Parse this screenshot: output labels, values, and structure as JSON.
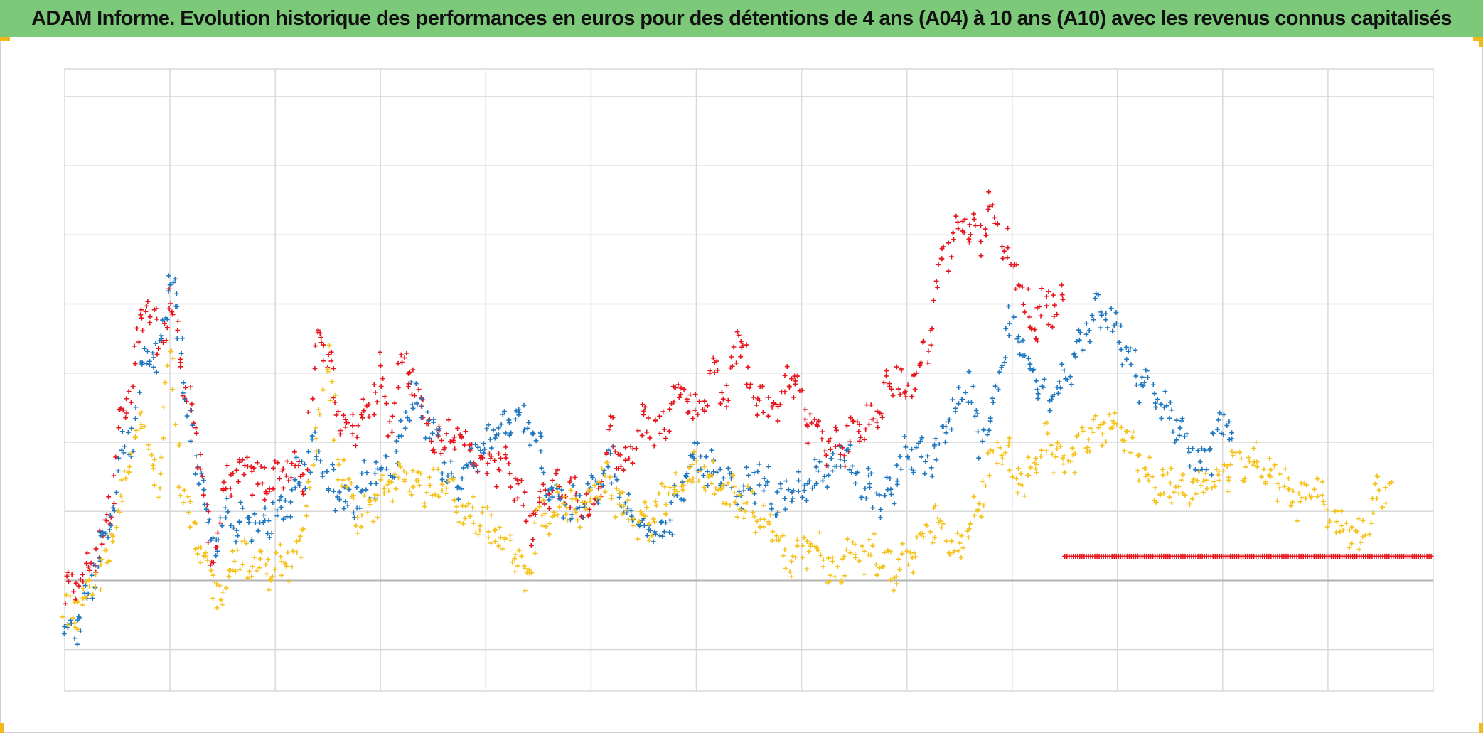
{
  "title": "ADAM Informe. Evolution historique des performances en euros pour des détentions de 4 ans (A04) à 10 ans (A10) avec les revenus connus capitalisés",
  "colors": {
    "title_bg": "#7dc97a",
    "A04": "#e8141b",
    "A07": "#1f77c0",
    "A10": "#f5c21b",
    "grid": "#d9d9d9",
    "corner_accent": "#f3b71a"
  },
  "chart_data": {
    "type": "scatter",
    "title": "ADAM Informe. Evolution historique des performances en euros pour des détentions de 4 ans (A04) à 10 ans (A10) avec les revenus connus capitalisés",
    "marker": "+",
    "grid": true,
    "legend": "none",
    "xlim": [
      0,
      13
    ],
    "ylim": [
      -1.6,
      7.4
    ],
    "x_grid_step": 1,
    "y_gridlines": [
      -1,
      0,
      1,
      2,
      3,
      4,
      5,
      6,
      7
    ],
    "y_baseline": 0,
    "series": [
      {
        "key": "A04",
        "color": "#e8141b",
        "points": [
          [
            0,
            -0.25
          ],
          [
            0.15,
            0
          ],
          [
            0.3,
            0.4
          ],
          [
            0.45,
            1.2
          ],
          [
            0.5,
            2.2
          ],
          [
            0.6,
            2.5
          ],
          [
            0.7,
            3.5
          ],
          [
            0.8,
            4
          ],
          [
            0.9,
            3.3
          ],
          [
            1,
            4.1
          ],
          [
            1.1,
            3.2
          ],
          [
            1.2,
            2.5
          ],
          [
            1.3,
            1.6
          ],
          [
            1.4,
            0.2
          ],
          [
            1.5,
            1.3
          ],
          [
            1.7,
            1.6
          ],
          [
            1.9,
            1.4
          ],
          [
            2.1,
            1.6
          ],
          [
            2.3,
            1.5
          ],
          [
            2.4,
            3.8
          ],
          [
            2.5,
            3.2
          ],
          [
            2.6,
            2.4
          ],
          [
            2.8,
            2.2
          ],
          [
            3,
            3
          ],
          [
            3.1,
            2.1
          ],
          [
            3.2,
            3.2
          ],
          [
            3.4,
            2.6
          ],
          [
            3.5,
            1.9
          ],
          [
            3.6,
            2.2
          ],
          [
            3.8,
            2
          ],
          [
            4,
            1.6
          ],
          [
            4.2,
            1.8
          ],
          [
            4.4,
            0.8
          ],
          [
            4.6,
            1.3
          ],
          [
            4.8,
            1.3
          ],
          [
            5,
            1
          ],
          [
            5.2,
            2.2
          ],
          [
            5.3,
            1.6
          ],
          [
            5.5,
            2.3
          ],
          [
            5.7,
            2.2
          ],
          [
            5.8,
            2.9
          ],
          [
            5.9,
            2.7
          ],
          [
            6,
            2.4
          ],
          [
            6.2,
            3.1
          ],
          [
            6.3,
            2.6
          ],
          [
            6.4,
            3.7
          ],
          [
            6.5,
            2.9
          ],
          [
            6.7,
            2.4
          ],
          [
            6.9,
            3
          ],
          [
            7,
            2.5
          ],
          [
            7.2,
            2
          ],
          [
            7.4,
            1.9
          ],
          [
            7.5,
            2.2
          ],
          [
            7.7,
            2.3
          ],
          [
            7.9,
            3
          ],
          [
            8,
            2.7
          ],
          [
            8.2,
            3.4
          ],
          [
            8.3,
            4.5
          ],
          [
            8.5,
            5.2
          ],
          [
            8.7,
            5
          ],
          [
            8.8,
            5.4
          ],
          [
            9,
            4.6
          ],
          [
            9.2,
            3.6
          ],
          [
            9.3,
            4
          ],
          [
            9.5,
            4
          ]
        ]
      },
      {
        "key": "A07",
        "color": "#1f77c0",
        "points": [
          [
            0,
            -0.7
          ],
          [
            0.15,
            -0.6
          ],
          [
            0.3,
            0.2
          ],
          [
            0.45,
            1
          ],
          [
            0.55,
            1.9
          ],
          [
            0.65,
            2.2
          ],
          [
            0.75,
            3.5
          ],
          [
            0.85,
            3
          ],
          [
            0.95,
            3.8
          ],
          [
            1,
            4.5
          ],
          [
            1.1,
            3.5
          ],
          [
            1.2,
            2
          ],
          [
            1.3,
            1.4
          ],
          [
            1.4,
            0.4
          ],
          [
            1.5,
            0.9
          ],
          [
            1.7,
            0.9
          ],
          [
            1.9,
            0.8
          ],
          [
            2.1,
            1.1
          ],
          [
            2.2,
            1.5
          ],
          [
            2.4,
            1.9
          ],
          [
            2.5,
            1.4
          ],
          [
            2.7,
            1.1
          ],
          [
            2.9,
            1.5
          ],
          [
            3.1,
            1.6
          ],
          [
            3.3,
            2.7
          ],
          [
            3.5,
            2.2
          ],
          [
            3.7,
            1.3
          ],
          [
            3.9,
            1.8
          ],
          [
            4.1,
            2.1
          ],
          [
            4.3,
            2.4
          ],
          [
            4.5,
            1.9
          ],
          [
            4.6,
            1.4
          ],
          [
            4.8,
            1
          ],
          [
            5,
            1.2
          ],
          [
            5.2,
            1.7
          ],
          [
            5.3,
            1
          ],
          [
            5.5,
            0.9
          ],
          [
            5.7,
            0.7
          ],
          [
            5.9,
            1.5
          ],
          [
            6,
            1.8
          ],
          [
            6.2,
            1.5
          ],
          [
            6.4,
            1.2
          ],
          [
            6.6,
            1.5
          ],
          [
            6.8,
            1.1
          ],
          [
            7,
            1.3
          ],
          [
            7.2,
            1.5
          ],
          [
            7.4,
            1.9
          ],
          [
            7.6,
            1.4
          ],
          [
            7.8,
            1.1
          ],
          [
            8,
            1.9
          ],
          [
            8.2,
            1.7
          ],
          [
            8.4,
            2.2
          ],
          [
            8.6,
            2.8
          ],
          [
            8.7,
            1.9
          ],
          [
            9,
            3.8
          ],
          [
            9.2,
            3
          ],
          [
            9.4,
            2.6
          ],
          [
            9.6,
            3.3
          ],
          [
            9.8,
            3.9
          ],
          [
            10,
            3.6
          ],
          [
            10.2,
            2.9
          ],
          [
            10.4,
            2.6
          ],
          [
            10.6,
            2.2
          ],
          [
            10.8,
            1.6
          ],
          [
            11,
            2.3
          ],
          [
            11.1,
            2.1
          ]
        ]
      },
      {
        "key": "A10",
        "color": "#f5c21b",
        "points": [
          [
            0,
            -0.5
          ],
          [
            0.2,
            -0.4
          ],
          [
            0.35,
            0.2
          ],
          [
            0.5,
            0.8
          ],
          [
            0.6,
            1.6
          ],
          [
            0.75,
            2.5
          ],
          [
            0.9,
            1.2
          ],
          [
            1,
            3.5
          ],
          [
            1.1,
            1.5
          ],
          [
            1.2,
            0.7
          ],
          [
            1.4,
            0
          ],
          [
            1.5,
            -0.2
          ],
          [
            1.6,
            0.4
          ],
          [
            1.8,
            0.2
          ],
          [
            2,
            0.2
          ],
          [
            2.2,
            0.3
          ],
          [
            2.3,
            0.8
          ],
          [
            2.5,
            3.4
          ],
          [
            2.6,
            1.7
          ],
          [
            2.8,
            0.9
          ],
          [
            3,
            1.2
          ],
          [
            3.2,
            1.5
          ],
          [
            3.4,
            1.4
          ],
          [
            3.6,
            1.3
          ],
          [
            3.8,
            1
          ],
          [
            4,
            0.8
          ],
          [
            4.2,
            0.5
          ],
          [
            4.4,
            0
          ],
          [
            4.5,
            0.9
          ],
          [
            4.7,
            1.1
          ],
          [
            4.9,
            1
          ],
          [
            5.1,
            1.5
          ],
          [
            5.3,
            1.1
          ],
          [
            5.5,
            0.8
          ],
          [
            5.7,
            1.1
          ],
          [
            5.9,
            1.5
          ],
          [
            6.1,
            1.6
          ],
          [
            6.3,
            1.2
          ],
          [
            6.5,
            1.1
          ],
          [
            6.7,
            0.8
          ],
          [
            6.9,
            0.2
          ],
          [
            7.1,
            0.5
          ],
          [
            7.3,
            0.1
          ],
          [
            7.5,
            0.4
          ],
          [
            7.7,
            0.4
          ],
          [
            7.9,
            0.1
          ],
          [
            8.1,
            0.5
          ],
          [
            8.3,
            0.9
          ],
          [
            8.5,
            0.4
          ],
          [
            8.7,
            1.2
          ],
          [
            8.9,
            2
          ],
          [
            9.1,
            1.4
          ],
          [
            9.3,
            2
          ],
          [
            9.5,
            1.7
          ],
          [
            9.7,
            2
          ],
          [
            9.9,
            2.3
          ],
          [
            10.1,
            2
          ],
          [
            10.3,
            1.5
          ],
          [
            10.5,
            1.4
          ],
          [
            10.7,
            1.3
          ],
          [
            10.9,
            1.5
          ],
          [
            11.1,
            1.6
          ],
          [
            11.3,
            1.8
          ],
          [
            11.5,
            1.5
          ],
          [
            11.7,
            1.2
          ],
          [
            11.9,
            1.4
          ],
          [
            12.1,
            0.8
          ],
          [
            12.3,
            0.6
          ],
          [
            12.5,
            1.4
          ],
          [
            12.6,
            1.3
          ]
        ]
      },
      {
        "key": "A04-flat",
        "color": "#e8141b",
        "points": [
          [
            9.5,
            0.35
          ],
          [
            10.5,
            0.35
          ],
          [
            11.5,
            0.35
          ],
          [
            12.5,
            0.35
          ],
          [
            13,
            0.35
          ]
        ]
      }
    ]
  }
}
